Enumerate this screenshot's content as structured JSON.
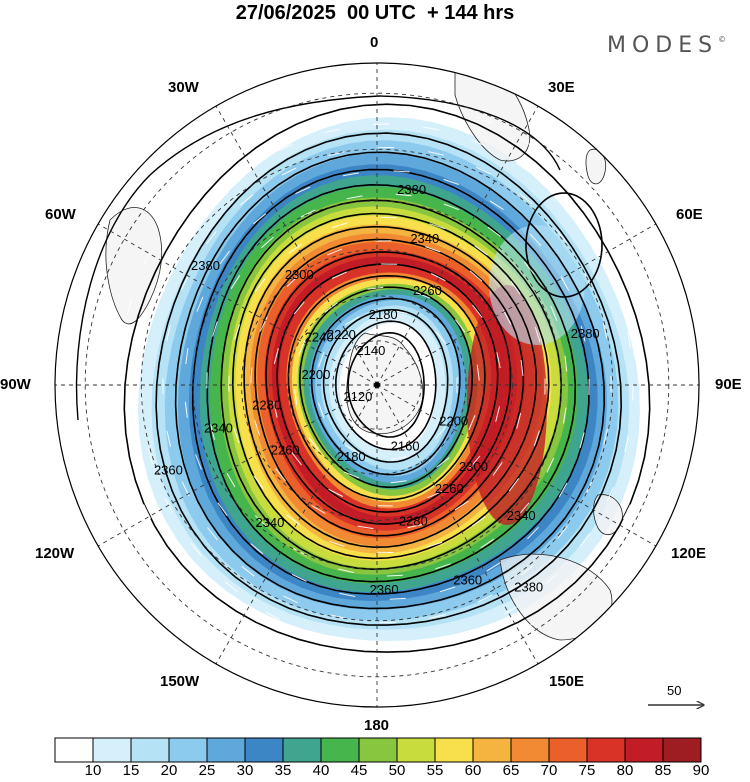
{
  "title": "27/06/2025  00 UTC  + 144 hrs",
  "brand": "MODES",
  "brand_mark": "©",
  "longitude_labels": [
    "0",
    "30E",
    "60E",
    "90E",
    "120E",
    "150E",
    "180",
    "150W",
    "120W",
    "90W",
    "60W",
    "30W"
  ],
  "contour_labels": [
    {
      "text": "2380",
      "lon": 10,
      "lat": -47
    },
    {
      "text": "2380",
      "lon": -55,
      "lat": -45
    },
    {
      "text": "2380",
      "lon": 76,
      "lat": -44
    },
    {
      "text": "2380",
      "lon": 143,
      "lat": -37
    },
    {
      "text": "2360",
      "lon": -112,
      "lat": -42
    },
    {
      "text": "2360",
      "lon": 155,
      "lat": -44
    },
    {
      "text": "2360",
      "lon": 178,
      "lat": -46
    },
    {
      "text": "2340",
      "lon": 18,
      "lat": -56
    },
    {
      "text": "2340",
      "lon": -105,
      "lat": -54
    },
    {
      "text": "2340",
      "lon": -142,
      "lat": -52
    },
    {
      "text": "2340",
      "lon": 132,
      "lat": -48
    },
    {
      "text": "2300",
      "lon": -35,
      "lat": -60
    },
    {
      "text": "2300",
      "lon": 130,
      "lat": -62
    },
    {
      "text": "2280",
      "lon": -100,
      "lat": -65
    },
    {
      "text": "2280",
      "lon": 165,
      "lat": -59
    },
    {
      "text": "2260",
      "lon": 28,
      "lat": -66
    },
    {
      "text": "2260",
      "lon": -125,
      "lat": -65
    },
    {
      "text": "2260",
      "lon": 145,
      "lat": -62
    },
    {
      "text": "2240",
      "lon": -50,
      "lat": -73
    },
    {
      "text": "2220",
      "lon": -35,
      "lat": -76
    },
    {
      "text": "2200",
      "lon": -80,
      "lat": -76
    },
    {
      "text": "2200",
      "lon": 115,
      "lat": -71
    },
    {
      "text": "2180",
      "lon": 5,
      "lat": -74
    },
    {
      "text": "2180",
      "lon": -160,
      "lat": -73
    },
    {
      "text": "2160",
      "lon": 155,
      "lat": -75
    },
    {
      "text": "2140",
      "lon": -10,
      "lat": -82
    },
    {
      "text": "2120",
      "lon": -120,
      "lat": -85
    }
  ],
  "vector_reference": {
    "label": "50"
  },
  "colorbar": {
    "ticks": [
      "10",
      "15",
      "20",
      "25",
      "30",
      "35",
      "40",
      "45",
      "50",
      "55",
      "60",
      "65",
      "70",
      "75",
      "80",
      "85",
      "90"
    ],
    "colors": [
      "#ffffff",
      "#d6f0fb",
      "#b5e2f5",
      "#8ccaee",
      "#5ea8dc",
      "#3d86c6",
      "#3fa58f",
      "#46b54c",
      "#88c63f",
      "#c8dc3e",
      "#f7e04b",
      "#f4b43f",
      "#f18a33",
      "#ea5f2a",
      "#d93327",
      "#c21d26",
      "#9e1d23"
    ]
  }
}
